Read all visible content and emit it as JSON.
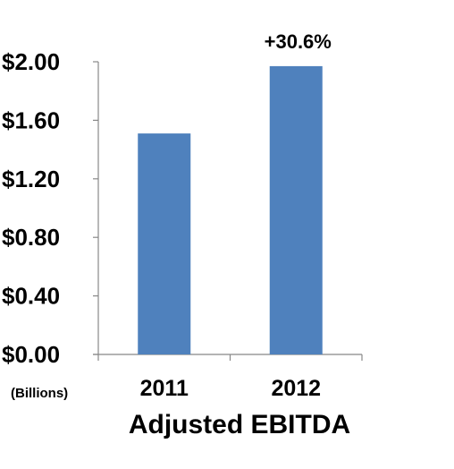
{
  "chart_data": {
    "type": "bar",
    "title": "",
    "xlabel": "Adjusted EBITDA",
    "ylabel": "",
    "unit_label": "(Billions)",
    "categories": [
      "2011",
      "2012"
    ],
    "values": [
      1.51,
      1.97
    ],
    "ylim": [
      0,
      2.0
    ],
    "yticks": [
      0,
      0.4,
      0.8,
      1.2,
      1.6,
      2.0
    ],
    "ytick_labels": [
      "$0.00",
      "$0.40",
      "$0.80",
      "$1.20",
      "$1.60",
      "$2.00"
    ],
    "annotations": [
      {
        "category": "2012",
        "text": "+30.6%"
      }
    ],
    "grid": false,
    "legend": "none",
    "bar_color": "#4f81bd"
  }
}
